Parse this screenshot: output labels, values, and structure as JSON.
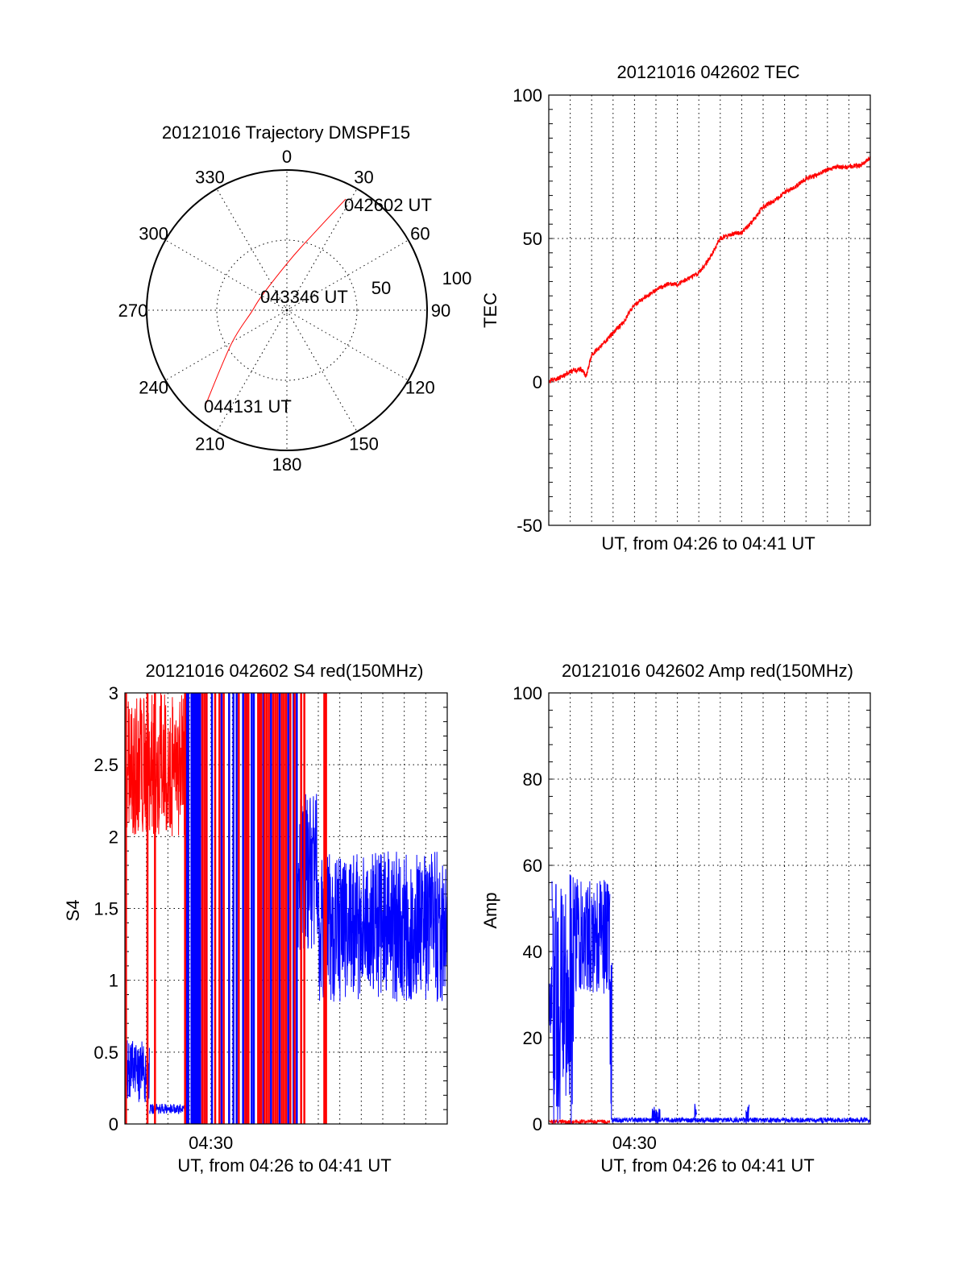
{
  "chart_data": [
    {
      "type": "polar",
      "title": "20121016 Trajectory DMSPF15",
      "angle_labels": [
        "0",
        "30",
        "60",
        "90",
        "120",
        "150",
        "180",
        "210",
        "240",
        "270",
        "300",
        "330"
      ],
      "radial_labels": [
        "50",
        "100"
      ],
      "rlim": [
        0,
        100
      ],
      "trajectory_color": "#ff0000",
      "trajectory": [
        {
          "az": 27.9,
          "r": 89.7
        },
        {
          "az": 14.4,
          "r": 48.6
        },
        {
          "az": 1,
          "r": 33.9
        },
        {
          "az": 300,
          "r": 20.6
        },
        {
          "az": 267,
          "r": 25.3
        },
        {
          "az": 238.7,
          "r": 46.4
        },
        {
          "az": 220.6,
          "r": 89.2
        }
      ],
      "annotations": [
        {
          "text": "042602 UT",
          "point": 0
        },
        {
          "text": "043346 UT",
          "point": 3
        },
        {
          "text": "044131 UT",
          "point": 6
        }
      ]
    },
    {
      "type": "line",
      "title": "20121016 042602 TEC",
      "xlabel": "UT, from 04:26 to 04:41 UT",
      "ylabel": "TEC",
      "ylim": [
        -50,
        100
      ],
      "yticks": [
        -50,
        0,
        50,
        100
      ],
      "xlim_minutes": [
        0,
        15
      ],
      "xtick_labels": [],
      "series": [
        {
          "name": "TEC",
          "color": "#ff0000",
          "x": [
            0,
            0.5,
            1,
            1.5,
            1.75,
            2,
            2.5,
            3,
            3.5,
            4,
            4.5,
            5,
            5.5,
            6,
            6.5,
            7,
            7.5,
            8,
            8.5,
            9,
            9.5,
            10,
            10.5,
            11,
            11.5,
            12,
            12.5,
            13,
            13.5,
            14,
            14.5,
            15
          ],
          "y": [
            0,
            1.5,
            3.5,
            4.5,
            2,
            9.5,
            13,
            17,
            21,
            27,
            29.5,
            32,
            34,
            34,
            36,
            38,
            43,
            50,
            51.5,
            52,
            56,
            61,
            63,
            66,
            68,
            71,
            72,
            74,
            75,
            75,
            75.5,
            78
          ]
        }
      ]
    },
    {
      "type": "line",
      "title": "20121016 042602 S4 red(150MHz)",
      "xlabel": "UT, from 04:26 to 04:41 UT",
      "ylabel": "S4",
      "ylim": [
        0,
        3
      ],
      "yticks": [
        0,
        0.5,
        1,
        1.5,
        2,
        2.5,
        3
      ],
      "ytick_labels": [
        "0",
        "0.5",
        "1",
        "1.5",
        "2",
        "2.5",
        "3"
      ],
      "xlim_minutes": [
        0,
        15
      ],
      "xtick_labels": [
        {
          "minute": 4,
          "label": "04:30"
        }
      ],
      "series": [
        {
          "name": "S4 red",
          "color": "#ff0000",
          "noise_bands": [
            [
              0,
              2.85,
              2.0,
              3.0
            ]
          ],
          "vertical_lines": [
            0.05,
            1.05,
            1.4,
            2.8,
            3.6,
            3.7,
            3.8,
            4.2,
            4.4,
            4.6,
            5.3,
            5.6,
            5.7,
            5.75,
            6.2,
            6.25,
            6.3,
            6.35,
            6.5,
            6.6,
            6.7,
            6.9,
            7.0,
            7.1,
            7.3,
            7.4,
            7.5,
            7.7,
            7.9,
            8.2,
            8.35,
            9.28,
            9.3,
            9.33,
            9.36
          ]
        },
        {
          "name": "S4 blue",
          "color": "#0000ff",
          "noise_bands": [
            [
              0,
              1.15,
              0.13,
              0.6
            ],
            [
              1.15,
              2.8,
              0.07,
              0.14
            ],
            [
              8.05,
              9.0,
              1.2,
              2.3
            ],
            [
              9.0,
              15,
              0.85,
              1.9
            ]
          ],
          "vertical_lines": [
            2.87,
            2.95,
            3.1,
            3.15,
            3.2,
            3.25,
            3.3,
            3.35,
            3.4,
            3.45,
            3.5,
            3.8,
            4.05,
            4.5,
            4.85,
            5.05,
            5.2,
            5.5,
            5.65,
            5.9,
            6.0,
            6.3,
            6.45,
            6.8,
            7.2,
            7.6,
            7.85,
            8.0
          ]
        }
      ]
    },
    {
      "type": "line",
      "title": "20121016 042602 Amp red(150MHz)",
      "xlabel": "UT, from 04:26 to 04:41 UT",
      "ylabel": "Amp",
      "ylim": [
        0,
        100
      ],
      "yticks": [
        0,
        20,
        40,
        60,
        80,
        100
      ],
      "ytick_labels": [
        "0",
        "20",
        "40",
        "60",
        "80",
        "100"
      ],
      "xlim_minutes": [
        0,
        15
      ],
      "xtick_labels": [
        {
          "minute": 4,
          "label": "04:30"
        }
      ],
      "series": [
        {
          "name": "Amp red",
          "color": "#ff0000",
          "noise_bands": [
            [
              0,
              2.85,
              0,
              1
            ]
          ],
          "vertical_lines": []
        },
        {
          "name": "Amp blue",
          "color": "#0000ff",
          "noise_bands": [
            [
              0,
              0.15,
              20,
              40
            ],
            [
              0.15,
              1.18,
              0,
              58
            ],
            [
              1.18,
              2.85,
              30,
              57
            ],
            [
              2.85,
              2.95,
              0,
              40
            ],
            [
              2.95,
              15,
              0.3,
              1.5
            ],
            [
              4.8,
              5.2,
              0,
              4
            ],
            [
              6.8,
              6.9,
              0,
              5
            ],
            [
              9.2,
              9.35,
              0,
              5
            ]
          ],
          "vertical_lines": []
        }
      ]
    }
  ]
}
